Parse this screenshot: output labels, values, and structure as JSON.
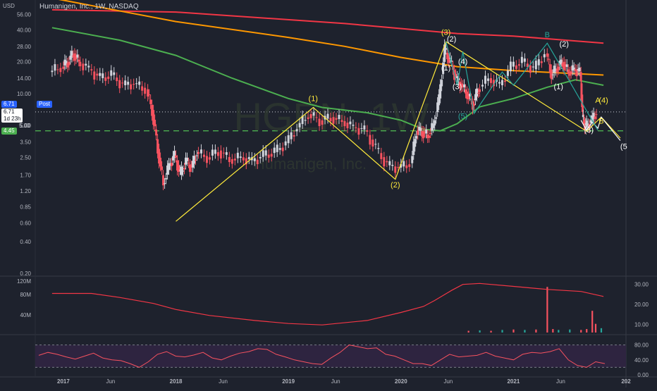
{
  "header": {
    "symbol_title": "Humanigen, Inc., 1W, NASDAQ",
    "currency": "USD"
  },
  "watermark": {
    "ticker": "HGEN, 1W",
    "name": "Humanigen, Inc."
  },
  "tags": {
    "last_price": "6.71",
    "last_label": "Post",
    "last_price_2": "6.71",
    "countdown": "1d 23h",
    "level_1": "5.00",
    "level_2": "4.45"
  },
  "colors": {
    "background": "#1e222d",
    "bull": "#d1d4dc",
    "bear": "#f7525f",
    "ma_red": "#f23645",
    "ma_orange": "#ff9800",
    "ma_green": "#4caf50",
    "wave_yellow": "#ffeb3b",
    "wave_teal": "#26a69a",
    "dashed_green": "#4caf50",
    "rsi_line": "#f7525f",
    "rsi_band": "#2e2440"
  },
  "chart_data": [
    {
      "type": "candlestick",
      "scale": "log",
      "ylim": [
        0.2,
        70
      ],
      "y_ticks": [
        "56.00",
        "40.00",
        "28.00",
        "20.00",
        "14.00",
        "10.00",
        "5.00",
        "3.50",
        "2.50",
        "1.70",
        "1.20",
        "0.85",
        "0.60",
        "0.40",
        "0.20"
      ],
      "x_ticks": [
        "2017",
        "Jun",
        "2018",
        "Jun",
        "2019",
        "Jun",
        "2020",
        "Jun",
        "2021",
        "Jun",
        "202"
      ],
      "moving_averages": [
        {
          "color": "red",
          "points": [
            [
              2016.9,
              62
            ],
            [
              2018.0,
              59
            ],
            [
              2019.5,
              46
            ],
            [
              2020.5,
              37
            ],
            [
              2021.0,
              35
            ],
            [
              2021.8,
              30
            ]
          ]
        },
        {
          "color": "orange",
          "points": [
            [
              2016.9,
              80
            ],
            [
              2018.0,
              48
            ],
            [
              2019.0,
              34
            ],
            [
              2019.5,
              28
            ],
            [
              2020.0,
              22
            ],
            [
              2020.5,
              18
            ],
            [
              2021.0,
              16.5
            ],
            [
              2021.8,
              15
            ]
          ]
        },
        {
          "color": "green",
          "points": [
            [
              2016.9,
              42
            ],
            [
              2017.5,
              32
            ],
            [
              2018.0,
              23
            ],
            [
              2018.5,
              14
            ],
            [
              2019.0,
              9
            ],
            [
              2019.3,
              7.4
            ],
            [
              2019.7,
              6.6
            ],
            [
              2020.0,
              5.6
            ],
            [
              2020.2,
              4.6
            ],
            [
              2020.35,
              4.45
            ],
            [
              2020.5,
              5.2
            ],
            [
              2020.7,
              7.5
            ],
            [
              2021.0,
              9
            ],
            [
              2021.3,
              11.5
            ],
            [
              2021.55,
              13.5
            ],
            [
              2021.8,
              12
            ]
          ]
        }
      ],
      "wave_lines": [
        {
          "color": "yellow",
          "points": [
            [
              2018.0,
              0.62
            ],
            [
              2019.22,
              7.4
            ],
            [
              2019.95,
              1.55
            ],
            [
              2020.4,
              31
            ],
            [
              2021.65,
              4.4
            ],
            [
              2021.78,
              6.0
            ],
            [
              2021.95,
              3.8
            ]
          ]
        },
        {
          "color": "white",
          "points": [
            [
              2021.6,
              5.6
            ],
            [
              2021.65,
              4.5
            ],
            [
              2021.7,
              5.4
            ],
            [
              2021.75,
              4.7
            ],
            [
              2021.78,
              6.0
            ],
            [
              2021.95,
              3.6
            ]
          ]
        },
        {
          "color": "teal",
          "points": [
            [
              2020.4,
              31
            ],
            [
              2020.5,
              12
            ],
            [
              2020.55,
              25
            ],
            [
              2020.65,
              6.5
            ],
            [
              2020.9,
              16
            ],
            [
              2021.0,
              12
            ],
            [
              2021.3,
              30
            ],
            [
              2021.5,
              13
            ],
            [
              2021.75,
              4.5
            ]
          ]
        }
      ],
      "wave_labels": [
        {
          "text": "(1)",
          "x": 2019.22,
          "y": 8.5,
          "color": "yellow"
        },
        {
          "text": "(2)",
          "x": 2019.95,
          "y": 1.3,
          "color": "yellow"
        },
        {
          "text": "(3)",
          "x": 2020.4,
          "y": 36,
          "color": "yellow"
        },
        {
          "text": "(2)",
          "x": 2020.45,
          "y": 31,
          "color": "white"
        },
        {
          "text": "(1)",
          "x": 2020.4,
          "y": 16.5,
          "color": "white"
        },
        {
          "text": "(3)",
          "x": 2020.5,
          "y": 11,
          "color": "white"
        },
        {
          "text": "(4)",
          "x": 2020.55,
          "y": 19,
          "color": "white"
        },
        {
          "text": "(5)",
          "x": 2020.55,
          "y": 5.8,
          "color": "teal"
        },
        {
          "text": "B",
          "x": 2021.3,
          "y": 34,
          "color": "teal"
        },
        {
          "text": "(2)",
          "x": 2021.45,
          "y": 28,
          "color": "white"
        },
        {
          "text": "(1)",
          "x": 2021.4,
          "y": 11,
          "color": "white"
        },
        {
          "text": "A",
          "x": 2021.75,
          "y": 8.2,
          "color": "yellow"
        },
        {
          "text": "(4)",
          "x": 2021.8,
          "y": 8.2,
          "color": "yellow"
        },
        {
          "text": "(3)",
          "x": 2021.67,
          "y": 4.3,
          "color": "white"
        },
        {
          "text": "B",
          "x": 2021.78,
          "y": 5.2,
          "color": "yellow"
        },
        {
          "text": "(5",
          "x": 2021.98,
          "y": 3.0,
          "color": "white"
        }
      ],
      "close_series": [
        {
          "x": 2016.9,
          "y": 16
        },
        {
          "x": 2017.0,
          "y": 18
        },
        {
          "x": 2017.05,
          "y": 20
        },
        {
          "x": 2017.1,
          "y": 24
        },
        {
          "x": 2017.15,
          "y": 20
        },
        {
          "x": 2017.25,
          "y": 17
        },
        {
          "x": 2017.35,
          "y": 14
        },
        {
          "x": 2017.45,
          "y": 15
        },
        {
          "x": 2017.55,
          "y": 12
        },
        {
          "x": 2017.65,
          "y": 12.5
        },
        {
          "x": 2017.75,
          "y": 11
        },
        {
          "x": 2017.8,
          "y": 7
        },
        {
          "x": 2017.85,
          "y": 3
        },
        {
          "x": 2017.9,
          "y": 1.4
        },
        {
          "x": 2017.95,
          "y": 2.1
        },
        {
          "x": 2018.0,
          "y": 2.6
        },
        {
          "x": 2018.05,
          "y": 1.7
        },
        {
          "x": 2018.1,
          "y": 2.3
        },
        {
          "x": 2018.15,
          "y": 2.0
        },
        {
          "x": 2018.2,
          "y": 2.8
        },
        {
          "x": 2018.3,
          "y": 2.5
        },
        {
          "x": 2018.4,
          "y": 2.9
        },
        {
          "x": 2018.5,
          "y": 2.4
        },
        {
          "x": 2018.6,
          "y": 2.5
        },
        {
          "x": 2018.7,
          "y": 2.3
        },
        {
          "x": 2018.8,
          "y": 2.6
        },
        {
          "x": 2018.9,
          "y": 2.8
        },
        {
          "x": 2019.0,
          "y": 3.4
        },
        {
          "x": 2019.1,
          "y": 4.8
        },
        {
          "x": 2019.2,
          "y": 6.4
        },
        {
          "x": 2019.3,
          "y": 5.6
        },
        {
          "x": 2019.4,
          "y": 6.0
        },
        {
          "x": 2019.5,
          "y": 5.5
        },
        {
          "x": 2019.6,
          "y": 4.8
        },
        {
          "x": 2019.7,
          "y": 4.5
        },
        {
          "x": 2019.8,
          "y": 3.0
        },
        {
          "x": 2019.9,
          "y": 2.1
        },
        {
          "x": 2020.0,
          "y": 2.0
        },
        {
          "x": 2020.1,
          "y": 2.2
        },
        {
          "x": 2020.15,
          "y": 4.5
        },
        {
          "x": 2020.2,
          "y": 4.4
        },
        {
          "x": 2020.25,
          "y": 4.0
        },
        {
          "x": 2020.3,
          "y": 5.0
        },
        {
          "x": 2020.35,
          "y": 9.0
        },
        {
          "x": 2020.4,
          "y": 26
        },
        {
          "x": 2020.45,
          "y": 20
        },
        {
          "x": 2020.5,
          "y": 14
        },
        {
          "x": 2020.55,
          "y": 12
        },
        {
          "x": 2020.6,
          "y": 10
        },
        {
          "x": 2020.65,
          "y": 8.0
        },
        {
          "x": 2020.7,
          "y": 11
        },
        {
          "x": 2020.8,
          "y": 14
        },
        {
          "x": 2020.9,
          "y": 12
        },
        {
          "x": 2021.0,
          "y": 18
        },
        {
          "x": 2021.1,
          "y": 20
        },
        {
          "x": 2021.2,
          "y": 17
        },
        {
          "x": 2021.3,
          "y": 24
        },
        {
          "x": 2021.35,
          "y": 15
        },
        {
          "x": 2021.4,
          "y": 18
        },
        {
          "x": 2021.45,
          "y": 20
        },
        {
          "x": 2021.5,
          "y": 16
        },
        {
          "x": 2021.55,
          "y": 17
        },
        {
          "x": 2021.6,
          "y": 16
        },
        {
          "x": 2021.62,
          "y": 6.0
        },
        {
          "x": 2021.65,
          "y": 4.8
        },
        {
          "x": 2021.7,
          "y": 5.5
        },
        {
          "x": 2021.75,
          "y": 6.71
        }
      ],
      "dashed_level": 4.45,
      "dotted_level": 6.71
    },
    {
      "type": "bar+line",
      "name": "volume",
      "y_ticks_left": [
        "120M",
        "80M",
        "40M"
      ],
      "y_ticks_right": [
        "30.00",
        "20.00",
        "10.00"
      ],
      "ylim_right": [
        6,
        32
      ],
      "bar_ylim": [
        0,
        120
      ],
      "line": [
        {
          "x": 2016.9,
          "y": 25.5
        },
        {
          "x": 2017.25,
          "y": 25.5
        },
        {
          "x": 2017.5,
          "y": 23.5
        },
        {
          "x": 2017.8,
          "y": 20.5
        },
        {
          "x": 2018.0,
          "y": 17.5
        },
        {
          "x": 2018.3,
          "y": 14.5
        },
        {
          "x": 2018.7,
          "y": 12
        },
        {
          "x": 2019.0,
          "y": 10.5
        },
        {
          "x": 2019.3,
          "y": 9.8
        },
        {
          "x": 2019.7,
          "y": 12
        },
        {
          "x": 2020.0,
          "y": 16
        },
        {
          "x": 2020.2,
          "y": 19
        },
        {
          "x": 2020.3,
          "y": 22
        },
        {
          "x": 2020.45,
          "y": 27
        },
        {
          "x": 2020.55,
          "y": 30
        },
        {
          "x": 2020.7,
          "y": 30.5
        },
        {
          "x": 2021.0,
          "y": 29
        },
        {
          "x": 2021.3,
          "y": 27.5
        },
        {
          "x": 2021.6,
          "y": 26.5
        },
        {
          "x": 2021.8,
          "y": 24
        }
      ],
      "bars": [
        {
          "x": 2020.6,
          "v": 4,
          "c": "red"
        },
        {
          "x": 2020.7,
          "v": 5,
          "c": "teal"
        },
        {
          "x": 2020.8,
          "v": 4,
          "c": "red"
        },
        {
          "x": 2020.9,
          "v": 6,
          "c": "teal"
        },
        {
          "x": 2021.0,
          "v": 7,
          "c": "red"
        },
        {
          "x": 2021.1,
          "v": 6,
          "c": "teal"
        },
        {
          "x": 2021.2,
          "v": 7,
          "c": "red"
        },
        {
          "x": 2021.3,
          "v": 105,
          "c": "red"
        },
        {
          "x": 2021.35,
          "v": 8,
          "c": "red"
        },
        {
          "x": 2021.4,
          "v": 6,
          "c": "teal"
        },
        {
          "x": 2021.5,
          "v": 7,
          "c": "teal"
        },
        {
          "x": 2021.6,
          "v": 6,
          "c": "red"
        },
        {
          "x": 2021.65,
          "v": 8,
          "c": "red"
        },
        {
          "x": 2021.7,
          "v": 50,
          "c": "red"
        },
        {
          "x": 2021.73,
          "v": 20,
          "c": "red"
        },
        {
          "x": 2021.78,
          "v": 10,
          "c": "teal"
        }
      ]
    },
    {
      "type": "line",
      "name": "rsi",
      "y_ticks": [
        "80.00",
        "40.00",
        "0.00"
      ],
      "ylim": [
        0,
        100
      ],
      "band": [
        20,
        80
      ],
      "values": [
        52,
        60,
        55,
        48,
        42,
        50,
        58,
        45,
        40,
        38,
        30,
        20,
        35,
        55,
        62,
        50,
        48,
        53,
        60,
        45,
        40,
        50,
        58,
        62,
        70,
        68,
        55,
        48,
        40,
        35,
        30,
        28,
        45,
        60,
        80,
        75,
        70,
        72,
        55,
        50,
        40,
        30,
        30,
        25,
        40,
        55,
        48,
        50,
        52,
        60,
        50,
        45,
        40,
        55,
        60,
        58,
        62,
        70,
        40,
        25,
        20,
        35,
        30
      ]
    }
  ]
}
